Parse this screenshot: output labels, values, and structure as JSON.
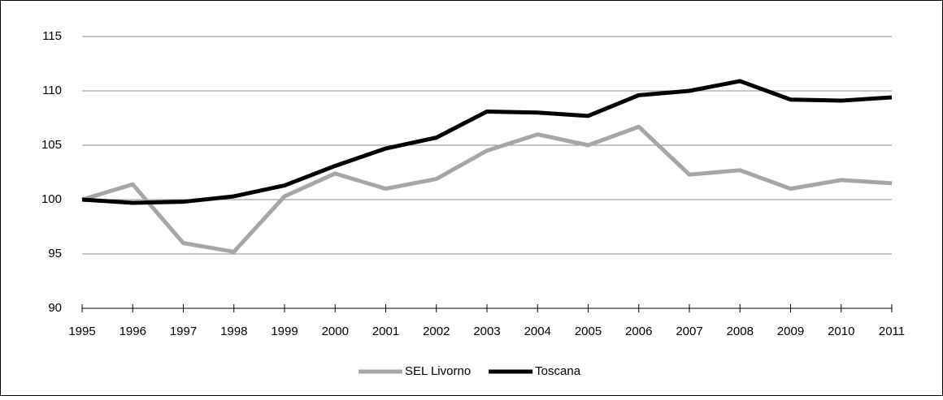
{
  "chart_data": {
    "type": "line",
    "x": [
      1995,
      1996,
      1997,
      1998,
      1999,
      2000,
      2001,
      2002,
      2003,
      2004,
      2005,
      2006,
      2007,
      2008,
      2009,
      2010,
      2011
    ],
    "series": [
      {
        "name": "SEL Livorno",
        "color": "#a6a6a6",
        "values": [
          100,
          101.4,
          96.0,
          95.2,
          100.3,
          102.4,
          101.0,
          101.9,
          104.5,
          106.0,
          105.0,
          106.7,
          102.3,
          102.7,
          101.0,
          101.8,
          101.5
        ]
      },
      {
        "name": "Toscana",
        "color": "#000000",
        "values": [
          100,
          99.7,
          99.8,
          100.3,
          101.3,
          103.1,
          104.7,
          105.7,
          108.1,
          108.0,
          107.7,
          109.6,
          110.0,
          110.9,
          109.2,
          109.1,
          109.4
        ]
      }
    ],
    "xlim": [
      1995,
      2011
    ],
    "xticks": [
      1995,
      1996,
      1997,
      1998,
      1999,
      2000,
      2001,
      2002,
      2003,
      2004,
      2005,
      2006,
      2007,
      2008,
      2009,
      2010,
      2011
    ],
    "ylim": [
      90,
      115
    ],
    "yticks": [
      90,
      95,
      100,
      105,
      110,
      115
    ],
    "grid": true,
    "legend": "bottom"
  }
}
